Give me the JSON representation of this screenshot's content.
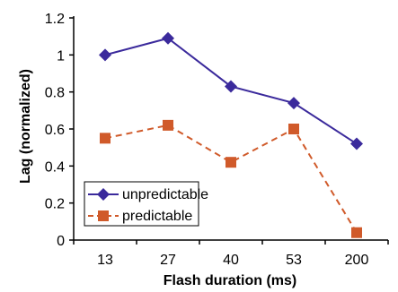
{
  "chart_data": {
    "type": "line",
    "categories": [
      "13",
      "27",
      "40",
      "53",
      "200"
    ],
    "series": [
      {
        "name": "unpredictable",
        "values": [
          1.0,
          1.09,
          0.83,
          0.74,
          0.52
        ],
        "color": "#3B2A9C",
        "marker": "diamond",
        "line_style": "solid"
      },
      {
        "name": "predictable",
        "values": [
          0.55,
          0.62,
          0.42,
          0.6,
          0.04
        ],
        "color": "#D05A2A",
        "marker": "square",
        "line_style": "dashed"
      }
    ],
    "y_ticks": [
      "0",
      "0.2",
      "0.4",
      "0.6",
      "0.8",
      "1",
      "1.2"
    ],
    "ylim": [
      0,
      1.2
    ],
    "xlabel": "Flash duration (ms)",
    "ylabel": "Lag (normalized)",
    "grid": false,
    "legend_position": "bottom-left"
  }
}
